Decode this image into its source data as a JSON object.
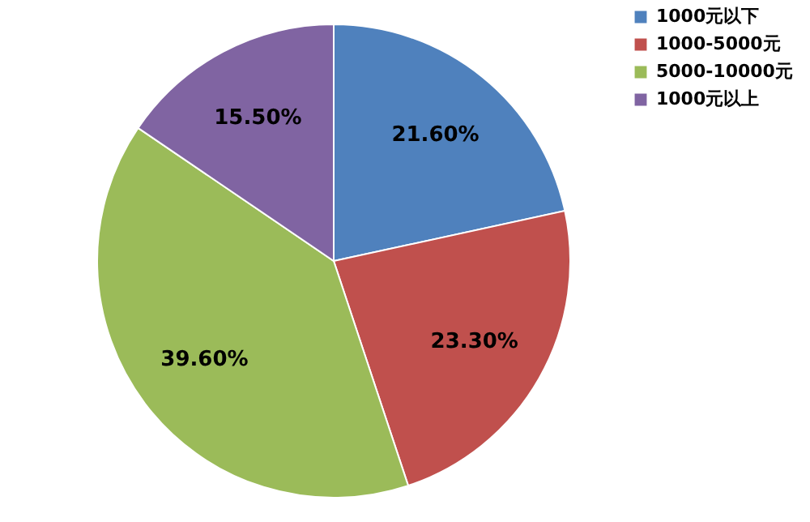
{
  "chart_data": {
    "type": "pie",
    "categories": [
      "1000元以下",
      "1000-5000元",
      "5000-10000元",
      "1000元以上"
    ],
    "values": [
      21.6,
      23.3,
      39.6,
      15.5
    ],
    "colors": [
      "#4f81bd",
      "#c0504d",
      "#9bbb59",
      "#8064a2"
    ],
    "value_labels": [
      "21.60%",
      "23.30%",
      "39.60%",
      "15.50%"
    ],
    "legend": "right"
  }
}
